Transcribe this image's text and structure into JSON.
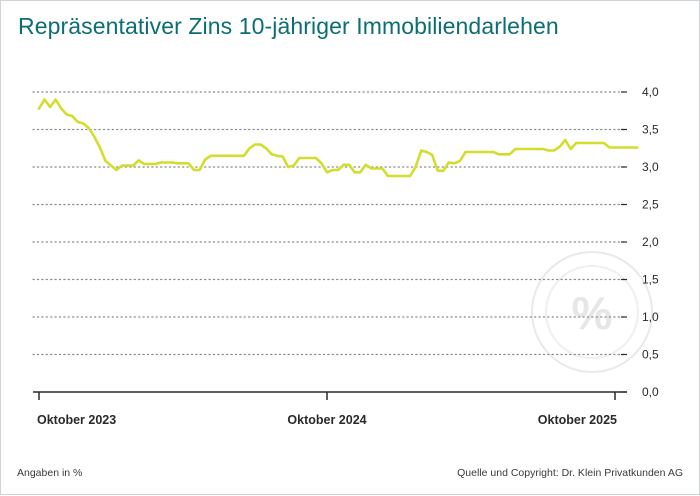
{
  "header": {
    "title": "Repräsentativer Zins 10-jähriger Immobiliendarlehen"
  },
  "footer": {
    "unit_note": "Angaben in %",
    "source": "Quelle und Copyright: Dr. Klein Privatkunden AG"
  },
  "watermark": {
    "icon": "percent-icon",
    "glyph": "%"
  },
  "colors": {
    "title": "#0b6e73",
    "line": "#d3dd2c",
    "grid": "#8a8a8a",
    "axis": "#2a2a2a",
    "watermark": "#e6e6e6"
  },
  "chart_data": {
    "type": "line",
    "title": "Repräsentativer Zins 10-jähriger Immobiliendarlehen",
    "xlabel": "",
    "ylabel": "",
    "ylim": [
      0,
      4
    ],
    "yticks": [
      "0,0",
      "0,5",
      "1,0",
      "1,5",
      "2,0",
      "2,5",
      "3,0",
      "3,5",
      "4,0"
    ],
    "yaxis_side": "right",
    "grid": "horizontal dotted",
    "x_ticks": [
      {
        "label": "Oktober 2023",
        "x": 0
      },
      {
        "label": "Oktober 2024",
        "x": 52
      },
      {
        "label": "Oktober 2025",
        "x": 104
      }
    ],
    "xlim": [
      0,
      104.5
    ],
    "x_unit": "weeks",
    "series": [
      {
        "values": [
          {
            "x": 0,
            "y": 3.78
          },
          {
            "x": 1,
            "y": 3.9
          },
          {
            "x": 2,
            "y": 3.8
          },
          {
            "x": 3,
            "y": 3.9
          },
          {
            "x": 4,
            "y": 3.78
          },
          {
            "x": 5,
            "y": 3.7
          },
          {
            "x": 6,
            "y": 3.68
          },
          {
            "x": 7,
            "y": 3.6
          },
          {
            "x": 8,
            "y": 3.58
          },
          {
            "x": 9,
            "y": 3.52
          },
          {
            "x": 10,
            "y": 3.4
          },
          {
            "x": 11,
            "y": 3.26
          },
          {
            "x": 12,
            "y": 3.08
          },
          {
            "x": 13,
            "y": 3.02
          },
          {
            "x": 14,
            "y": 2.96
          },
          {
            "x": 15,
            "y": 3.02
          },
          {
            "x": 16,
            "y": 3.02
          },
          {
            "x": 17,
            "y": 3.02
          },
          {
            "x": 18,
            "y": 3.09
          },
          {
            "x": 19,
            "y": 3.04
          },
          {
            "x": 20,
            "y": 3.04
          },
          {
            "x": 21,
            "y": 3.04
          },
          {
            "x": 22,
            "y": 3.06
          },
          {
            "x": 23,
            "y": 3.06
          },
          {
            "x": 24,
            "y": 3.06
          },
          {
            "x": 25,
            "y": 3.05
          },
          {
            "x": 26,
            "y": 3.05
          },
          {
            "x": 27,
            "y": 3.05
          },
          {
            "x": 28,
            "y": 2.96
          },
          {
            "x": 29,
            "y": 2.96
          },
          {
            "x": 30,
            "y": 3.1
          },
          {
            "x": 31,
            "y": 3.15
          },
          {
            "x": 32,
            "y": 3.15
          },
          {
            "x": 33,
            "y": 3.15
          },
          {
            "x": 34,
            "y": 3.15
          },
          {
            "x": 35,
            "y": 3.15
          },
          {
            "x": 36,
            "y": 3.15
          },
          {
            "x": 37,
            "y": 3.15
          },
          {
            "x": 38,
            "y": 3.25
          },
          {
            "x": 39,
            "y": 3.3
          },
          {
            "x": 40,
            "y": 3.3
          },
          {
            "x": 41,
            "y": 3.25
          },
          {
            "x": 42,
            "y": 3.17
          },
          {
            "x": 43,
            "y": 3.15
          },
          {
            "x": 44,
            "y": 3.14
          },
          {
            "x": 45,
            "y": 3.0
          },
          {
            "x": 46,
            "y": 3.02
          },
          {
            "x": 47,
            "y": 3.12
          },
          {
            "x": 48,
            "y": 3.12
          },
          {
            "x": 49,
            "y": 3.12
          },
          {
            "x": 50,
            "y": 3.12
          },
          {
            "x": 51,
            "y": 3.05
          },
          {
            "x": 52,
            "y": 2.93
          },
          {
            "x": 53,
            "y": 2.96
          },
          {
            "x": 54,
            "y": 2.96
          },
          {
            "x": 55,
            "y": 3.03
          },
          {
            "x": 56,
            "y": 3.03
          },
          {
            "x": 57,
            "y": 2.93
          },
          {
            "x": 58,
            "y": 2.93
          },
          {
            "x": 59,
            "y": 3.03
          },
          {
            "x": 60,
            "y": 2.98
          },
          {
            "x": 61,
            "y": 2.98
          },
          {
            "x": 62,
            "y": 2.98
          },
          {
            "x": 63,
            "y": 2.88
          },
          {
            "x": 64,
            "y": 2.88
          },
          {
            "x": 65,
            "y": 2.88
          },
          {
            "x": 66,
            "y": 2.88
          },
          {
            "x": 67,
            "y": 2.88
          },
          {
            "x": 68,
            "y": 3.0
          },
          {
            "x": 69,
            "y": 3.22
          },
          {
            "x": 70,
            "y": 3.2
          },
          {
            "x": 71,
            "y": 3.16
          },
          {
            "x": 72,
            "y": 2.95
          },
          {
            "x": 73,
            "y": 2.95
          },
          {
            "x": 74,
            "y": 3.06
          },
          {
            "x": 75,
            "y": 3.05
          },
          {
            "x": 76,
            "y": 3.08
          },
          {
            "x": 77,
            "y": 3.2
          },
          {
            "x": 78,
            "y": 3.2
          },
          {
            "x": 79,
            "y": 3.2
          },
          {
            "x": 80,
            "y": 3.2
          },
          {
            "x": 81,
            "y": 3.2
          },
          {
            "x": 82,
            "y": 3.2
          },
          {
            "x": 83,
            "y": 3.17
          },
          {
            "x": 84,
            "y": 3.17
          },
          {
            "x": 85,
            "y": 3.17
          },
          {
            "x": 86,
            "y": 3.24
          },
          {
            "x": 87,
            "y": 3.24
          },
          {
            "x": 88,
            "y": 3.24
          },
          {
            "x": 89,
            "y": 3.24
          },
          {
            "x": 90,
            "y": 3.24
          },
          {
            "x": 91,
            "y": 3.24
          },
          {
            "x": 92,
            "y": 3.22
          },
          {
            "x": 93,
            "y": 3.22
          },
          {
            "x": 94,
            "y": 3.27
          },
          {
            "x": 95,
            "y": 3.36
          },
          {
            "x": 96,
            "y": 3.24
          },
          {
            "x": 97,
            "y": 3.32
          },
          {
            "x": 98,
            "y": 3.32
          },
          {
            "x": 99,
            "y": 3.32
          },
          {
            "x": 100,
            "y": 3.32
          },
          {
            "x": 101,
            "y": 3.32
          },
          {
            "x": 102,
            "y": 3.32
          },
          {
            "x": 103,
            "y": 3.26
          },
          {
            "x": 104,
            "y": 3.26
          },
          {
            "x": 105,
            "y": 3.26
          },
          {
            "x": 106,
            "y": 3.26
          },
          {
            "x": 107,
            "y": 3.26
          },
          {
            "x": 108,
            "y": 3.26
          }
        ]
      }
    ]
  }
}
